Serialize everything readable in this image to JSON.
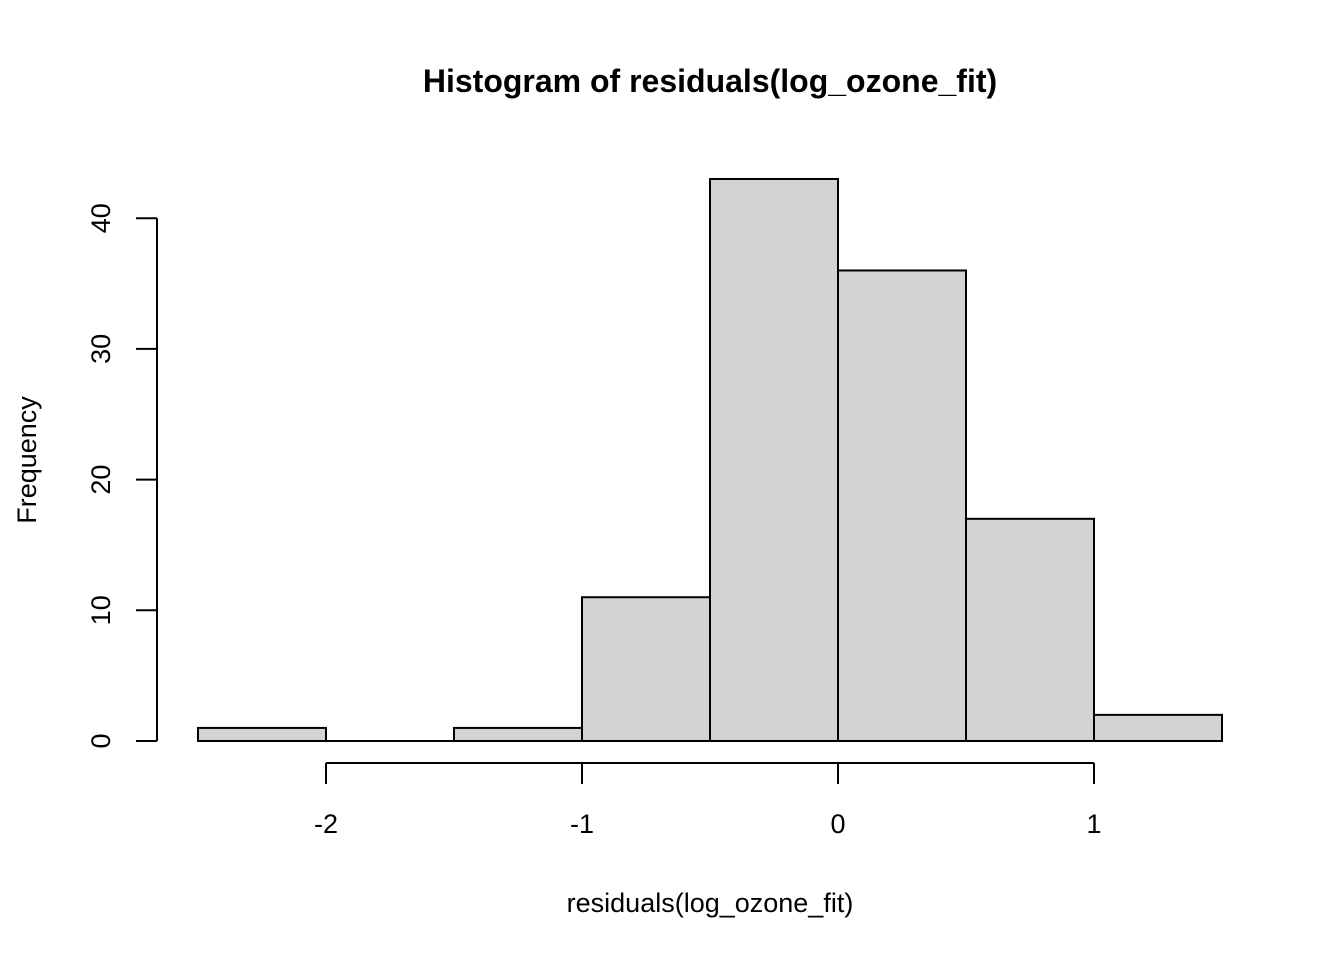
{
  "chart_data": {
    "type": "bar",
    "title": "Histogram of residuals(log_ozone_fit)",
    "xlabel": "residuals(log_ozone_fit)",
    "ylabel": "Frequency",
    "bins": [
      {
        "x0": -2.5,
        "x1": -2.0,
        "count": 1
      },
      {
        "x0": -2.0,
        "x1": -1.5,
        "count": 0
      },
      {
        "x0": -1.5,
        "x1": -1.0,
        "count": 1
      },
      {
        "x0": -1.0,
        "x1": -0.5,
        "count": 11
      },
      {
        "x0": -0.5,
        "x1": 0.0,
        "count": 43
      },
      {
        "x0": 0.0,
        "x1": 0.5,
        "count": 36
      },
      {
        "x0": 0.5,
        "x1": 1.0,
        "count": 17
      },
      {
        "x0": 1.0,
        "x1": 1.5,
        "count": 2
      }
    ],
    "xticks": [
      "-2",
      "-1",
      "0",
      "1"
    ],
    "yticks": [
      "0",
      "10",
      "20",
      "30",
      "40"
    ],
    "xlim": [
      -2.5,
      1.5
    ],
    "ylim": [
      0,
      43
    ],
    "bar_color": "#d3d3d3",
    "grid": false
  }
}
